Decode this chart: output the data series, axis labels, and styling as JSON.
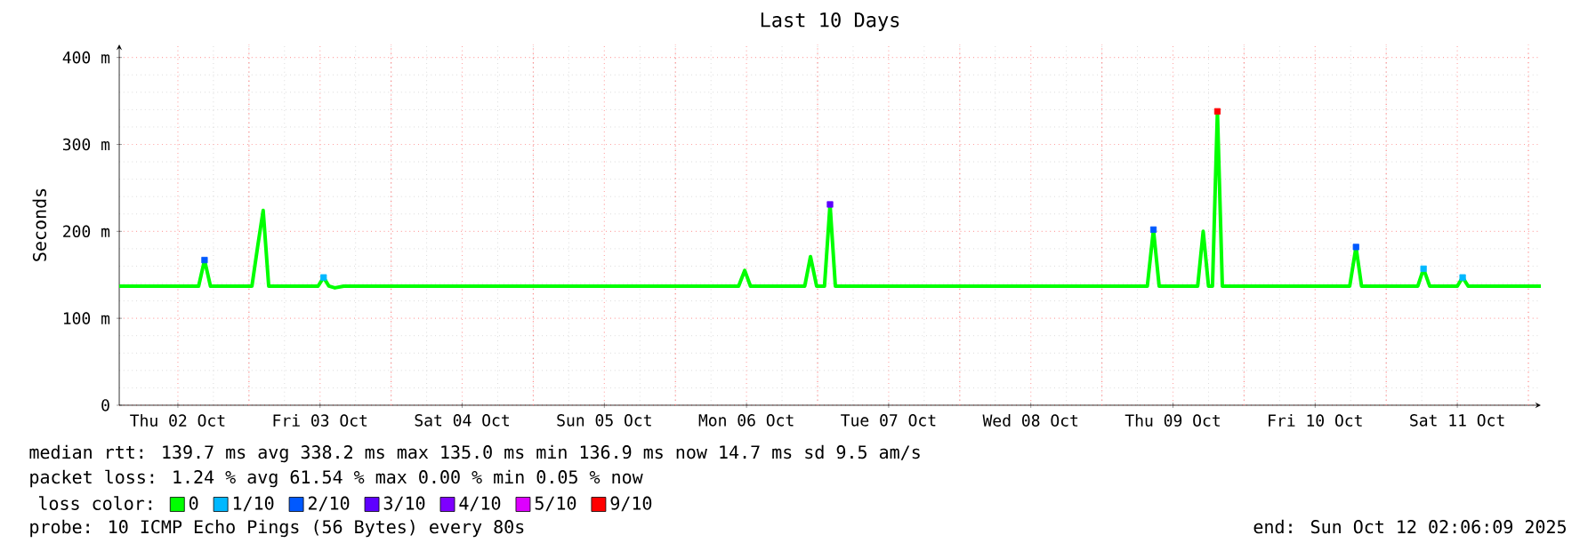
{
  "chart_data": {
    "type": "line",
    "title": "Last 10 Days",
    "ylabel": "Seconds",
    "legend_title": "loss color:",
    "xlim": [
      "2025-10-02T02:06",
      "2025-10-12T02:06"
    ],
    "xticks": [
      {
        "value": "2025-10-02T12:00",
        "label": "Thu 02 Oct"
      },
      {
        "value": "2025-10-03T00:00",
        "label": null
      },
      {
        "value": "2025-10-03T12:00",
        "label": "Fri 03 Oct"
      },
      {
        "value": "2025-10-04T00:00",
        "label": null
      },
      {
        "value": "2025-10-04T12:00",
        "label": "Sat 04 Oct"
      },
      {
        "value": "2025-10-05T00:00",
        "label": null
      },
      {
        "value": "2025-10-05T12:00",
        "label": "Sun 05 Oct"
      },
      {
        "value": "2025-10-06T00:00",
        "label": null
      },
      {
        "value": "2025-10-06T12:00",
        "label": "Mon 06 Oct"
      },
      {
        "value": "2025-10-07T00:00",
        "label": null
      },
      {
        "value": "2025-10-07T12:00",
        "label": "Tue 07 Oct"
      },
      {
        "value": "2025-10-08T00:00",
        "label": null
      },
      {
        "value": "2025-10-08T12:00",
        "label": "Wed 08 Oct"
      },
      {
        "value": "2025-10-09T00:00",
        "label": null
      },
      {
        "value": "2025-10-09T12:00",
        "label": "Thu 09 Oct"
      },
      {
        "value": "2025-10-10T00:00",
        "label": null
      },
      {
        "value": "2025-10-10T12:00",
        "label": "Fri 10 Oct"
      },
      {
        "value": "2025-10-11T00:00",
        "label": null
      },
      {
        "value": "2025-10-11T12:00",
        "label": "Sat 11 Oct"
      },
      {
        "value": "2025-10-12T00:00",
        "label": null
      }
    ],
    "ylim": [
      0,
      415
    ],
    "yticks": [
      0,
      {
        "value": 100,
        "label": "100 m"
      },
      {
        "value": 200,
        "label": "200 m"
      },
      {
        "value": 300,
        "label": "300 m"
      },
      {
        "value": 400,
        "label": "400 m"
      }
    ],
    "grid": true,
    "legend": "bottom",
    "series": [
      {
        "name": "0",
        "color": "#00ff00",
        "x": [
          "2025-10-02T02:06",
          "2025-10-02T15:30",
          "2025-10-02T16:30",
          "2025-10-02T17:30",
          "2025-10-03T00:30",
          "2025-10-03T01:30",
          "2025-10-03T02:24",
          "2025-10-03T03:20",
          "2025-10-03T11:40",
          "2025-10-03T12:36",
          "2025-10-03T13:30",
          "2025-10-03T14:30",
          "2025-10-03T16:00",
          "2025-10-06T10:40",
          "2025-10-06T11:42",
          "2025-10-06T12:40",
          "2025-10-06T21:50",
          "2025-10-06T22:48",
          "2025-10-06T23:50",
          "2025-10-07T01:10",
          "2025-10-07T02:06",
          "2025-10-07T03:00",
          "2025-10-09T07:40",
          "2025-10-09T08:42",
          "2025-10-09T09:40",
          "2025-10-09T16:10",
          "2025-10-09T17:06",
          "2025-10-09T18:00",
          "2025-10-09T18:40",
          "2025-10-09T19:30",
          "2025-10-09T20:20",
          "2025-10-10T17:50",
          "2025-10-10T18:54",
          "2025-10-10T19:50",
          "2025-10-11T05:20",
          "2025-10-11T06:18",
          "2025-10-11T07:20",
          "2025-10-11T12:00",
          "2025-10-11T12:54",
          "2025-10-11T13:50",
          "2025-10-12T02:06"
        ],
        "values": [
          137,
          137,
          167,
          137,
          137,
          184,
          224,
          137,
          137,
          147,
          137,
          135,
          137,
          137,
          155,
          137,
          137,
          171,
          137,
          137,
          231,
          137,
          137,
          202,
          137,
          137,
          200,
          137,
          137,
          338,
          137,
          137,
          182,
          137,
          137,
          157,
          137,
          137,
          147,
          137,
          137
        ]
      },
      {
        "name": "1/10",
        "color": "#00b8ff",
        "type": "scatter",
        "marker": "square",
        "x": [
          "2025-10-03T12:36",
          "2025-10-11T06:18",
          "2025-10-11T12:54"
        ],
        "values": [
          147,
          157,
          147
        ]
      },
      {
        "name": "2/10",
        "color": "#0059ff",
        "type": "scatter",
        "marker": "square",
        "x": [
          "2025-10-02T16:30",
          "2025-10-09T08:42",
          "2025-10-10T18:54"
        ],
        "values": [
          167,
          202,
          182
        ]
      },
      {
        "name": "3/10",
        "color": "#5e00ff",
        "type": "scatter",
        "marker": "square",
        "x": [
          "2025-10-07T02:06"
        ],
        "values": [
          231
        ]
      },
      {
        "name": "4/10",
        "color": "#7e00ff",
        "type": "scatter"
      },
      {
        "name": "5/10",
        "color": "#dd00ff",
        "type": "scatter"
      },
      {
        "name": "9/10",
        "color": "#ff0000",
        "type": "scatter",
        "marker": "square",
        "x": [
          "2025-10-09T19:30"
        ],
        "values": [
          338
        ]
      }
    ],
    "annotations": [
      "median rtt:  139.7 ms avg  338.2 ms max  135.0 ms min  136.9 ms now  14.7 ms sd  9.5   am/s",
      "packet loss: 1.24 % avg  61.54 % max  0.00 % min  0.05 % now",
      "probe:       10 ICMP Echo Pings (56 Bytes) every 80s",
      "end: Sun Oct 12 02:06:09 2025"
    ]
  }
}
